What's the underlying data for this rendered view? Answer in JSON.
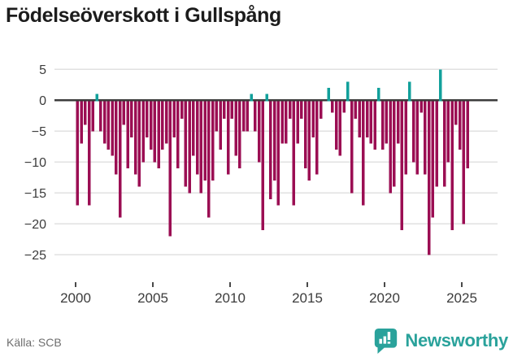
{
  "header": {
    "title": "Födelseöverskott i Gullspång"
  },
  "chart_data": {
    "type": "bar",
    "title": "Födelseöverskott i Gullspång",
    "x_frequency": "quarterly",
    "x_start": "2000-Q1",
    "x_end": "2025-Q2",
    "values": [
      -17,
      -7,
      -4,
      -17,
      -5,
      1,
      -5,
      -7,
      -8,
      -9,
      -12,
      -19,
      -4,
      -11,
      -6,
      -12,
      -14,
      -10,
      -6,
      -8,
      -10,
      -11,
      -8,
      -7,
      -22,
      -6,
      -11,
      -3,
      -14,
      -15,
      -9,
      -12,
      -15,
      -13,
      -19,
      -13,
      -5,
      -8,
      -3,
      -12,
      -3,
      -9,
      -11,
      -5,
      -5,
      1,
      -5,
      -10,
      -21,
      1,
      -16,
      -13,
      -17,
      -7,
      -7,
      -3,
      -17,
      -7,
      -3,
      -11,
      -13,
      -6,
      -12,
      -3,
      0,
      2,
      -2,
      -8,
      -9,
      -2,
      3,
      -15,
      -3,
      -6,
      -17,
      -6,
      -7,
      -8,
      2,
      -8,
      -7,
      -15,
      -14,
      -7,
      -21,
      -12,
      3,
      -10,
      -12,
      -2,
      -12,
      -25,
      -19,
      -14,
      5,
      -14,
      -10,
      -21,
      -4,
      -8,
      -20,
      -11
    ],
    "yticks": [
      5,
      0,
      -5,
      -10,
      -15,
      -20,
      -25
    ],
    "xticks": [
      2000,
      2005,
      2010,
      2015,
      2020,
      2025
    ],
    "ylim": [
      -27.5,
      6.5
    ],
    "grid": true,
    "legend": "none",
    "positive_color": "#12a09b",
    "negative_color": "#9b0e53"
  },
  "footer": {
    "source_label": "Källa: SCB",
    "brand_name": "Newsworthy"
  },
  "colors": {
    "title_text": "#1c1c1c",
    "axis_text": "#3c3c3c",
    "gridline": "#e1e1e1",
    "zero_line": "#3c3c3c",
    "tick_mark": "#4a4a4a",
    "source_text": "#6e6e6e",
    "brand_teal": "#2aa29b"
  }
}
